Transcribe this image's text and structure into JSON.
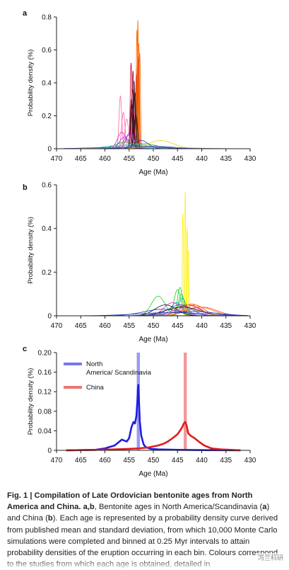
{
  "chart_data": [
    {
      "type": "line",
      "panel_label": "a",
      "xlabel": "Age (Ma)",
      "ylabel": "Probability density (%)",
      "xlim": [
        470,
        430
      ],
      "ylim": [
        0,
        0.8
      ],
      "xticks": [
        470,
        465,
        460,
        455,
        450,
        445,
        440,
        435,
        430
      ],
      "yticks": [
        0,
        0.2,
        0.4,
        0.6,
        0.8
      ],
      "ytick_labels": [
        "0",
        "0.2",
        "0.4",
        "0.6",
        "0.8"
      ],
      "series": [
        {
          "color": "#ff6a00",
          "x": [
            453.2,
            453.4,
            453.0,
            452.8,
            453.3
          ],
          "y": [
            0.78,
            0.72,
            0.64,
            0.58,
            0.5
          ],
          "sd": [
            0.12,
            0.13,
            0.14,
            0.15,
            0.18
          ]
        },
        {
          "color": "#e8401a",
          "x": [
            453.1,
            453.5
          ],
          "y": [
            0.56,
            0.45
          ],
          "sd": [
            0.16,
            0.19
          ]
        },
        {
          "color": "#cc0033",
          "x": [
            454.6,
            454.3
          ],
          "y": [
            0.52,
            0.36
          ],
          "sd": [
            0.18,
            0.26
          ]
        },
        {
          "color": "#990033",
          "x": [
            454.2,
            454.5
          ],
          "y": [
            0.47,
            0.3
          ],
          "sd": [
            0.2,
            0.28
          ]
        },
        {
          "color": "#111111",
          "x": [
            454.0,
            453.8,
            454.4,
            453.6
          ],
          "y": [
            0.41,
            0.34,
            0.27,
            0.2
          ],
          "sd": [
            0.22,
            0.25,
            0.3,
            0.35
          ]
        },
        {
          "color": "#ff66aa",
          "x": [
            456.8,
            456.2,
            455.5
          ],
          "y": [
            0.32,
            0.22,
            0.18
          ],
          "sd": [
            0.28,
            0.35,
            0.4
          ]
        },
        {
          "color": "#cc33cc",
          "x": [
            456.5,
            455.0
          ],
          "y": [
            0.1,
            0.08
          ],
          "sd": [
            0.9,
            1.1
          ]
        },
        {
          "color": "#7a33cc",
          "x": [
            454.8,
            456.0
          ],
          "y": [
            0.1,
            0.07
          ],
          "sd": [
            0.8,
            1.0
          ]
        },
        {
          "color": "#22aa22",
          "x": [
            455.8,
            452.0
          ],
          "y": [
            0.04,
            0.03
          ],
          "sd": [
            2.0,
            2.6
          ]
        },
        {
          "color": "#33cccc",
          "x": [
            454.0,
            457.0
          ],
          "y": [
            0.03,
            0.02
          ],
          "sd": [
            2.6,
            3.0
          ]
        },
        {
          "color": "#e6d600",
          "x": [
            448.5
          ],
          "y": [
            0.05
          ],
          "sd": [
            2.6
          ]
        },
        {
          "color": "#2233bb",
          "x": [
            452.5,
            450.5,
            455.0
          ],
          "y": [
            0.05,
            0.015,
            0.01
          ],
          "sd": [
            1.4,
            4.5,
            7.0
          ]
        },
        {
          "color": "#888888",
          "x": [
            452.0
          ],
          "y": [
            0.01
          ],
          "sd": [
            7.5
          ]
        }
      ]
    },
    {
      "type": "line",
      "panel_label": "b",
      "xlabel": "Age (Ma)",
      "ylabel": "Probability density (%)",
      "xlim": [
        470,
        430
      ],
      "ylim": [
        0,
        0.6
      ],
      "xticks": [
        470,
        465,
        460,
        455,
        450,
        445,
        440,
        435,
        430
      ],
      "yticks": [
        0,
        0.2,
        0.4,
        0.6
      ],
      "ytick_labels": [
        "0",
        "0.2",
        "0.4",
        "0.6"
      ],
      "series": [
        {
          "color": "#ffee00",
          "x": [
            443.4,
            443.9,
            443.0,
            442.8
          ],
          "y": [
            0.57,
            0.47,
            0.4,
            0.3
          ],
          "sd": [
            0.1,
            0.12,
            0.13,
            0.15
          ]
        },
        {
          "color": "#22cc22",
          "x": [
            444.5,
            445.0,
            444.2,
            449.0
          ],
          "y": [
            0.13,
            0.12,
            0.1,
            0.09
          ],
          "sd": [
            0.5,
            0.7,
            0.6,
            1.4
          ]
        },
        {
          "color": "#11aaaa",
          "x": [
            444.0,
            445.2,
            443.7
          ],
          "y": [
            0.08,
            0.06,
            0.05
          ],
          "sd": [
            0.8,
            1.2,
            1.0
          ]
        },
        {
          "color": "#cc33cc",
          "x": [
            446.0,
            442.5
          ],
          "y": [
            0.06,
            0.05
          ],
          "sd": [
            1.8,
            2.2
          ]
        },
        {
          "color": "#ff3333",
          "x": [
            441.5,
            443.0,
            440.0
          ],
          "y": [
            0.05,
            0.05,
            0.04
          ],
          "sd": [
            2.0,
            2.5,
            3.0
          ]
        },
        {
          "color": "#ff8800",
          "x": [
            442.0,
            440.5
          ],
          "y": [
            0.055,
            0.04
          ],
          "sd": [
            1.8,
            2.8
          ]
        },
        {
          "color": "#7a33cc",
          "x": [
            444.5
          ],
          "y": [
            0.05
          ],
          "sd": [
            2.4
          ]
        },
        {
          "color": "#111111",
          "x": [
            447.5,
            444.0
          ],
          "y": [
            0.05,
            0.04
          ],
          "sd": [
            2.2,
            3.5
          ]
        },
        {
          "color": "#2233bb",
          "x": [
            448.0,
            442.0,
            446.0
          ],
          "y": [
            0.03,
            0.02,
            0.015
          ],
          "sd": [
            4.0,
            5.0,
            7.0
          ]
        },
        {
          "color": "#999999",
          "x": [
            443.0
          ],
          "y": [
            0.03
          ],
          "sd": [
            3.0
          ]
        }
      ]
    },
    {
      "type": "line",
      "panel_label": "c",
      "xlabel": "Age (Ma)",
      "ylabel": "Probability density (%)",
      "xlim": [
        470,
        430
      ],
      "ylim": [
        0,
        0.2
      ],
      "xticks": [
        470,
        465,
        460,
        455,
        450,
        445,
        440,
        435,
        430
      ],
      "yticks": [
        0,
        0.04,
        0.08,
        0.12,
        0.16,
        0.2
      ],
      "ytick_labels": [
        "0",
        "0.04",
        "0.08",
        "0.12",
        "0.16",
        "0.20"
      ],
      "legend_position": "top-left",
      "series": [
        {
          "name": "North America/ Scandinavia",
          "color": "#1f1fe0",
          "band_x": 453.1,
          "x": [
            468,
            462,
            460,
            458,
            457,
            456.5,
            456,
            455.5,
            455,
            454.5,
            454.1,
            453.8,
            453.5,
            453.3,
            453.2,
            453.1,
            453.0,
            452.8,
            452.5,
            452.0,
            451.5,
            450.5,
            449,
            445,
            440,
            435,
            432
          ],
          "y": [
            0,
            0.001,
            0.004,
            0.01,
            0.018,
            0.022,
            0.02,
            0.018,
            0.025,
            0.048,
            0.058,
            0.055,
            0.07,
            0.1,
            0.125,
            0.134,
            0.11,
            0.06,
            0.03,
            0.012,
            0.006,
            0.003,
            0.002,
            0.001,
            0.0005,
            0.0002,
            0
          ]
        },
        {
          "name": "China",
          "color": "#e01b1b",
          "band_x": 443.4,
          "x": [
            468,
            462,
            458,
            455,
            453,
            452,
            451,
            450,
            449,
            448,
            447,
            446,
            445,
            444.5,
            444.0,
            443.7,
            443.4,
            443.1,
            442.8,
            442.3,
            441.5,
            440.5,
            439.5,
            438,
            436,
            434,
            432
          ],
          "y": [
            0,
            0.001,
            0.002,
            0.003,
            0.004,
            0.005,
            0.006,
            0.008,
            0.01,
            0.013,
            0.018,
            0.025,
            0.033,
            0.04,
            0.048,
            0.055,
            0.058,
            0.05,
            0.035,
            0.03,
            0.025,
            0.017,
            0.01,
            0.004,
            0.002,
            0.001,
            0
          ]
        }
      ]
    }
  ],
  "caption": {
    "bold_text": "Fig. 1 | Compilation of Late Ordovician bentonite ages from North America and China.",
    "panel_refs": "a,b",
    "text_1": ", Bentonite ages in North America/Scandinavia (",
    "ref_a": "a",
    "text_2": ") and China (",
    "ref_b": "b",
    "text_3": "). Each age is represented by a probability density curve derived from published mean and standard deviation, from which 10,000 Monte Carlo simulations were completed and binned at 0.25 Myr intervals to attain probability densities of the eruption occurring in each bin. Colours correspond to the studies from which each age is obtained, detailed in"
  },
  "watermark": "冯兰科研"
}
